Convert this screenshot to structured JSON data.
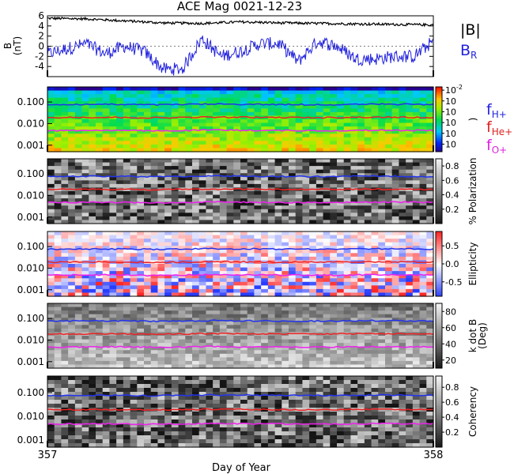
{
  "title": "ACE Mag 0021-12-23",
  "x_axis": {
    "label": "Day of Year",
    "start": 357,
    "end": 358,
    "start_label": "357",
    "end_label": "358"
  },
  "legend": {
    "field": [
      {
        "text": "|B|",
        "color": "#000000"
      },
      {
        "text": "B",
        "sub": "R",
        "color": "#2222dd"
      }
    ],
    "freq": [
      {
        "text": "f",
        "sub": "H+",
        "color": "#2222dd"
      },
      {
        "text": "f",
        "sub": "He+",
        "color": "#dd2222"
      },
      {
        "text": "f",
        "sub": "O+",
        "color": "#dd22dd"
      }
    ]
  },
  "colors": {
    "H+": "#2233ee",
    "He+": "#ee2222",
    "O+": "#ee22ee",
    "B": "#000000",
    "BR": "#2222dd"
  },
  "chart_data": [
    {
      "type": "line",
      "panel": "magnetic-field",
      "ylabel": "B",
      "yunit": "(nT)",
      "ylim": [
        -6,
        6
      ],
      "yticks": [
        -4,
        -2,
        0,
        2,
        4,
        6
      ],
      "series": [
        {
          "name": "|B|",
          "x": [
            357.0,
            357.1,
            357.2,
            357.3,
            357.4,
            357.5,
            357.6,
            357.7,
            357.8,
            357.9,
            358.0
          ],
          "values": [
            5.5,
            5.4,
            5.0,
            4.6,
            4.5,
            4.8,
            4.6,
            4.5,
            4.4,
            4.3,
            4.2
          ]
        },
        {
          "name": "BR",
          "x": [
            357.0,
            357.05,
            357.1,
            357.15,
            357.2,
            357.25,
            357.3,
            357.35,
            357.4,
            357.45,
            357.5,
            357.55,
            357.6,
            357.65,
            357.7,
            357.75,
            357.8,
            357.85,
            357.9,
            357.95,
            358.0
          ],
          "values": [
            -1.5,
            -0.5,
            0.5,
            -1.5,
            0.0,
            -1.0,
            -4.5,
            -4.5,
            1.5,
            -2.0,
            -1.0,
            0.5,
            0.5,
            -3.0,
            1.0,
            0.0,
            -2.5,
            -2.5,
            -2.0,
            -2.0,
            1.0
          ]
        }
      ]
    },
    {
      "type": "heatmap",
      "panel": "power-spectrum",
      "yscale": "log",
      "ylim": [
        0.0005,
        0.5
      ],
      "yticks": [
        "0.100",
        "0.010",
        "0.001"
      ],
      "colorbar": {
        "ticks": [
          "10",
          "10",
          "10",
          "10",
          "10",
          "10"
        ],
        "exponents": [
          "-2",
          "",
          "",
          "",
          "",
          ""
        ],
        "colormap": "rainbow",
        "label": ")"
      },
      "overlay": [
        {
          "name": "fH+",
          "values": [
            0.075,
            0.078,
            0.074,
            0.08,
            0.077,
            0.075,
            0.079,
            0.076
          ]
        },
        {
          "name": "fHe+",
          "values": [
            0.019,
            0.0195,
            0.0185,
            0.02,
            0.0192,
            0.019,
            0.0198,
            0.019
          ]
        },
        {
          "name": "fO+",
          "values": [
            0.0047,
            0.0049,
            0.0046,
            0.005,
            0.0048,
            0.0047,
            0.0049,
            0.0048
          ]
        }
      ]
    },
    {
      "type": "heatmap",
      "panel": "polarization",
      "yscale": "log",
      "yticks": [
        "0.100",
        "0.010",
        "0.001"
      ],
      "colorbar": {
        "ticks": [
          "0.8",
          "0.6",
          "0.4",
          "0.2"
        ],
        "colormap": "gray",
        "label": "% Polarization",
        "range": [
          0,
          0.9
        ]
      }
    },
    {
      "type": "heatmap",
      "panel": "ellipticity",
      "yscale": "log",
      "yticks": [
        "0.100",
        "0.010",
        "0.001"
      ],
      "colorbar": {
        "ticks": [
          "0.5",
          "0.0",
          "-0.5"
        ],
        "colormap": "blue-white-red",
        "label": "Ellipticity",
        "range": [
          -0.9,
          0.9
        ]
      }
    },
    {
      "type": "heatmap",
      "panel": "k-dot-b",
      "yscale": "log",
      "yticks": [
        "0.100",
        "0.010",
        "0.001"
      ],
      "colorbar": {
        "ticks": [
          "80",
          "60",
          "40",
          "20"
        ],
        "colormap": "gray",
        "label": "k dot B",
        "label2": "(Deg)",
        "range": [
          10,
          90
        ]
      }
    },
    {
      "type": "heatmap",
      "panel": "coherency",
      "yscale": "log",
      "yticks": [
        "0.100",
        "0.010",
        "0.001"
      ],
      "colorbar": {
        "ticks": [
          "0.8",
          "0.6",
          "0.4",
          "0.2"
        ],
        "colormap": "gray",
        "label": "Coherency",
        "range": [
          0,
          0.95
        ]
      }
    }
  ]
}
